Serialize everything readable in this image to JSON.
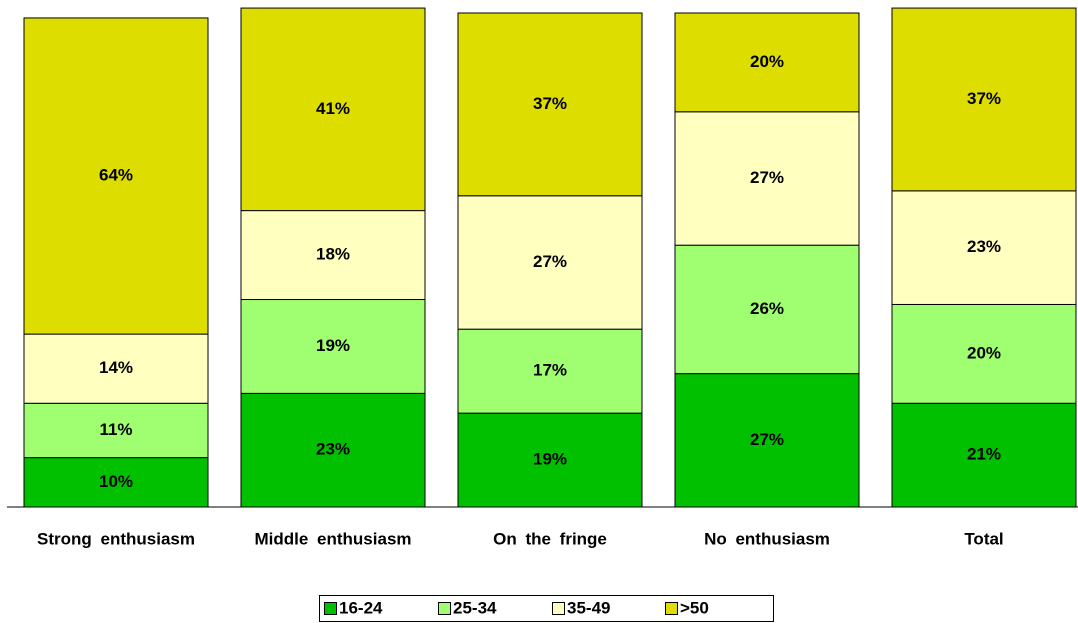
{
  "chart_data": {
    "type": "stacked_bar",
    "categories": [
      "Strong enthusiasm",
      "Middle enthusiasm",
      "On the fringe",
      "No enthusiasm",
      "Total"
    ],
    "series": [
      {
        "name": "16-24",
        "color": "#00c000",
        "values": [
          10,
          23,
          19,
          27,
          21
        ],
        "value_labels": [
          "10%",
          "23%",
          "19%",
          "27%",
          "21%"
        ]
      },
      {
        "name": "25-34",
        "color": "#a0ff70",
        "values": [
          11,
          19,
          17,
          26,
          20
        ],
        "value_labels": [
          "11%",
          "19%",
          "17%",
          "26%",
          "20%"
        ]
      },
      {
        "name": "35-49",
        "color": "#ffffc0",
        "values": [
          14,
          18,
          27,
          27,
          23
        ],
        "value_labels": [
          "14%",
          "18%",
          "27%",
          "27%",
          "23%"
        ]
      },
      {
        "name": ">50",
        "color": "#dddd00",
        "values": [
          64,
          41,
          37,
          20,
          37
        ],
        "value_labels": [
          "64%",
          "41%",
          "37%",
          "20%",
          "37%"
        ]
      }
    ],
    "ylim": [
      0,
      100
    ],
    "legend": "bottom"
  }
}
